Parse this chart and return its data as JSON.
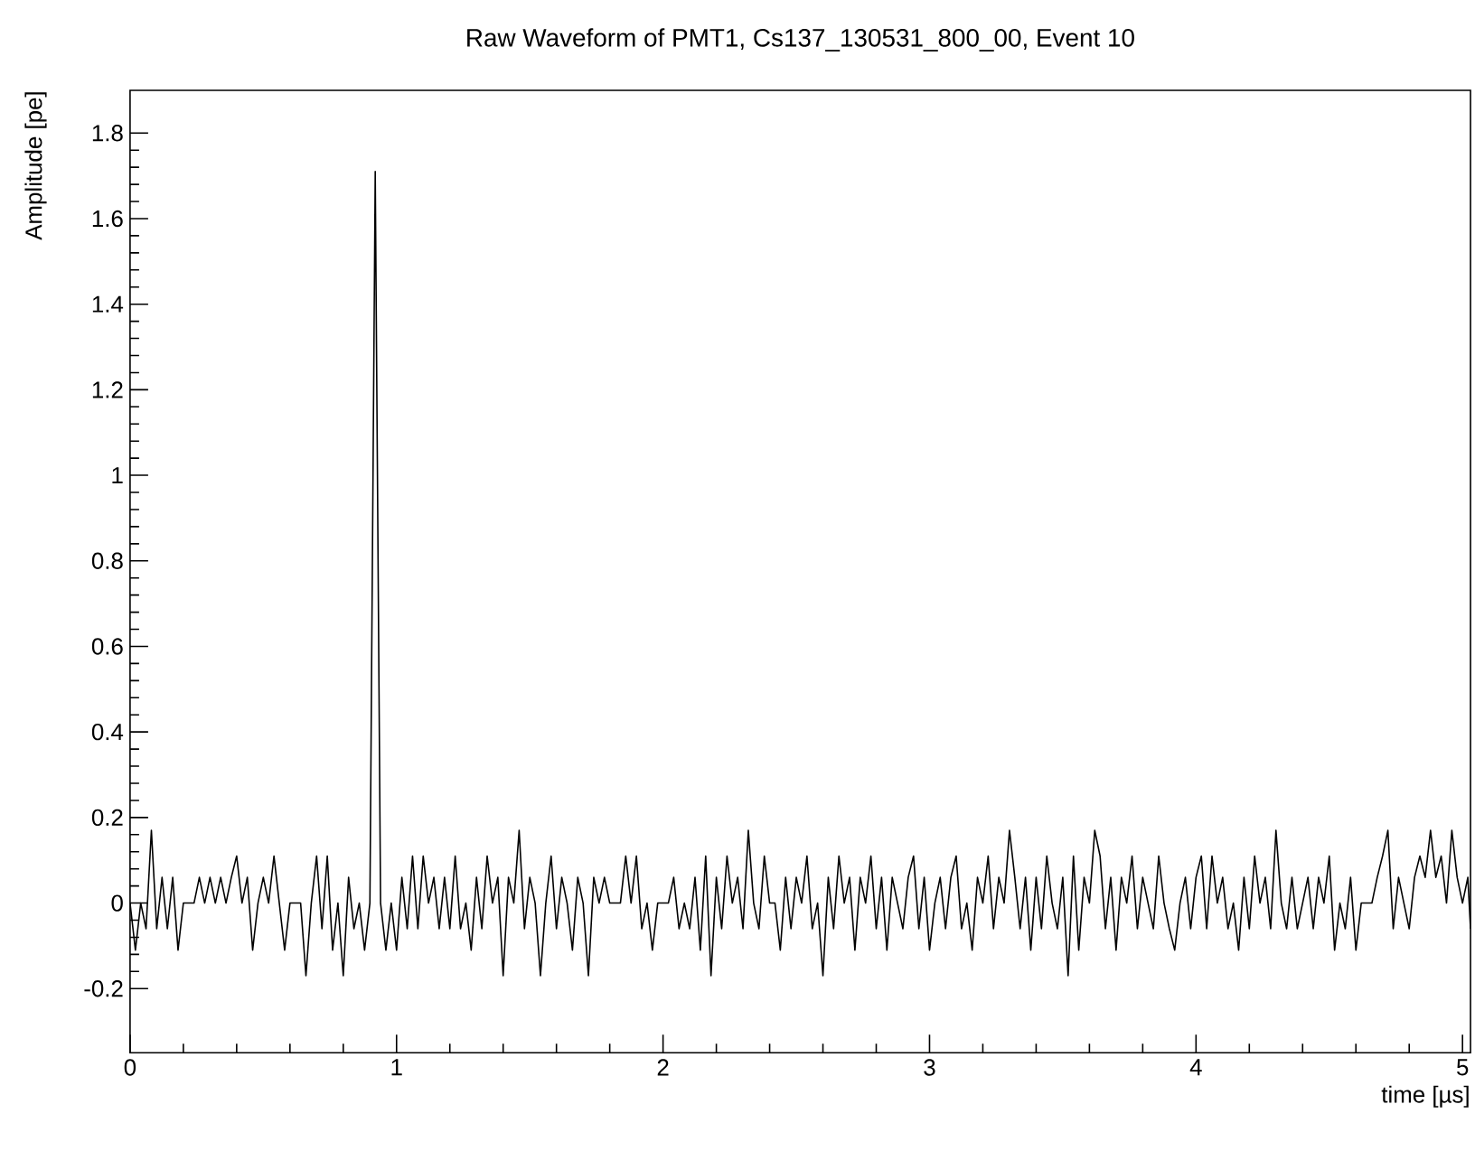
{
  "chart_data": {
    "type": "line",
    "title": "Raw Waveform of PMT1, Cs137_130531_800_00, Event 10",
    "xlabel": "time [µs]",
    "ylabel": "Amplitude [pe]",
    "xlim": [
      0,
      5.03
    ],
    "ylim": [
      -0.35,
      1.9
    ],
    "xticks": [
      0,
      1,
      2,
      3,
      4,
      5
    ],
    "yticks": [
      -0.2,
      0,
      0.2,
      0.4,
      0.6,
      0.8,
      1,
      1.2,
      1.4,
      1.6,
      1.8
    ],
    "marker": "none",
    "line_style": "solid",
    "series": [
      {
        "color": "#000000",
        "x": [
          0.0,
          0.02,
          0.04,
          0.06,
          0.08,
          0.1,
          0.12,
          0.14,
          0.16,
          0.18,
          0.2,
          0.24,
          0.26,
          0.28,
          0.3,
          0.32,
          0.34,
          0.36,
          0.38,
          0.4,
          0.42,
          0.44,
          0.46,
          0.48,
          0.5,
          0.52,
          0.54,
          0.56,
          0.58,
          0.6,
          0.64,
          0.66,
          0.68,
          0.7,
          0.72,
          0.74,
          0.76,
          0.78,
          0.8,
          0.82,
          0.84,
          0.86,
          0.88,
          0.9,
          0.92,
          0.94,
          0.96,
          0.98,
          1.0,
          1.02,
          1.04,
          1.06,
          1.08,
          1.1,
          1.12,
          1.14,
          1.16,
          1.18,
          1.2,
          1.22,
          1.24,
          1.26,
          1.28,
          1.3,
          1.32,
          1.34,
          1.36,
          1.38,
          1.4,
          1.42,
          1.44,
          1.46,
          1.48,
          1.5,
          1.52,
          1.54,
          1.56,
          1.58,
          1.6,
          1.62,
          1.64,
          1.66,
          1.68,
          1.7,
          1.72,
          1.74,
          1.76,
          1.78,
          1.8,
          1.84,
          1.86,
          1.88,
          1.9,
          1.92,
          1.94,
          1.96,
          1.98,
          2.02,
          2.04,
          2.06,
          2.08,
          2.1,
          2.12,
          2.14,
          2.16,
          2.18,
          2.2,
          2.22,
          2.24,
          2.26,
          2.28,
          2.3,
          2.32,
          2.34,
          2.36,
          2.38,
          2.4,
          2.42,
          2.44,
          2.46,
          2.48,
          2.5,
          2.52,
          2.54,
          2.56,
          2.58,
          2.6,
          2.62,
          2.64,
          2.66,
          2.68,
          2.7,
          2.72,
          2.74,
          2.76,
          2.78,
          2.8,
          2.82,
          2.84,
          2.86,
          2.88,
          2.9,
          2.92,
          2.94,
          2.96,
          2.98,
          3.0,
          3.02,
          3.04,
          3.06,
          3.08,
          3.1,
          3.12,
          3.14,
          3.16,
          3.18,
          3.2,
          3.22,
          3.24,
          3.26,
          3.28,
          3.3,
          3.32,
          3.34,
          3.36,
          3.38,
          3.4,
          3.42,
          3.44,
          3.46,
          3.48,
          3.5,
          3.52,
          3.54,
          3.56,
          3.58,
          3.6,
          3.62,
          3.64,
          3.66,
          3.68,
          3.7,
          3.72,
          3.74,
          3.76,
          3.78,
          3.8,
          3.82,
          3.84,
          3.86,
          3.88,
          3.9,
          3.92,
          3.94,
          3.96,
          3.98,
          4.0,
          4.02,
          4.04,
          4.06,
          4.08,
          4.1,
          4.12,
          4.14,
          4.16,
          4.18,
          4.2,
          4.22,
          4.24,
          4.26,
          4.28,
          4.3,
          4.32,
          4.34,
          4.36,
          4.38,
          4.4,
          4.42,
          4.44,
          4.46,
          4.48,
          4.5,
          4.52,
          4.54,
          4.56,
          4.58,
          4.6,
          4.62,
          4.66,
          4.68,
          4.7,
          4.72,
          4.74,
          4.76,
          4.78,
          4.8,
          4.82,
          4.84,
          4.86,
          4.88,
          4.9,
          4.92,
          4.94,
          4.96,
          4.98,
          5.0,
          5.02,
          5.03
        ],
        "values": [
          0,
          -0.11,
          0,
          -0.06,
          0.17,
          -0.06,
          0.06,
          -0.06,
          0.06,
          -0.11,
          0,
          0,
          0.06,
          0,
          0.06,
          0,
          0.06,
          0,
          0.06,
          0.11,
          0,
          0.06,
          -0.11,
          0,
          0.06,
          0,
          0.11,
          0,
          -0.11,
          0,
          0,
          -0.17,
          0,
          0.11,
          -0.06,
          0.11,
          -0.11,
          0,
          -0.17,
          0.06,
          -0.06,
          0,
          -0.11,
          0,
          1.71,
          0,
          -0.11,
          0,
          -0.11,
          0.06,
          -0.06,
          0.11,
          -0.06,
          0.11,
          0,
          0.06,
          -0.06,
          0.06,
          -0.06,
          0.11,
          -0.06,
          0,
          -0.11,
          0.06,
          -0.06,
          0.11,
          0,
          0.06,
          -0.17,
          0.06,
          0,
          0.17,
          -0.06,
          0.06,
          0,
          -0.17,
          0,
          0.11,
          -0.06,
          0.06,
          0,
          -0.11,
          0.06,
          0,
          -0.17,
          0.06,
          0,
          0.06,
          0,
          0,
          0.11,
          0,
          0.11,
          -0.06,
          0,
          -0.11,
          0,
          0,
          0.06,
          -0.06,
          0,
          -0.06,
          0.06,
          -0.11,
          0.11,
          -0.17,
          0.06,
          -0.06,
          0.11,
          0,
          0.06,
          -0.06,
          0.17,
          0,
          -0.06,
          0.11,
          0,
          0,
          -0.11,
          0.06,
          -0.06,
          0.06,
          0,
          0.11,
          -0.06,
          0,
          -0.17,
          0.06,
          -0.06,
          0.11,
          0,
          0.06,
          -0.11,
          0.06,
          0,
          0.11,
          -0.06,
          0.06,
          -0.11,
          0.06,
          0,
          -0.06,
          0.06,
          0.11,
          -0.06,
          0.06,
          -0.11,
          0,
          0.06,
          -0.06,
          0.06,
          0.11,
          -0.06,
          0,
          -0.11,
          0.06,
          0,
          0.11,
          -0.06,
          0.06,
          0,
          0.17,
          0.06,
          -0.06,
          0.06,
          -0.11,
          0.06,
          -0.06,
          0.11,
          0,
          -0.06,
          0.06,
          -0.17,
          0.11,
          -0.11,
          0.06,
          0,
          0.17,
          0.11,
          -0.06,
          0.06,
          -0.11,
          0.06,
          0,
          0.11,
          -0.06,
          0.06,
          0,
          -0.06,
          0.11,
          0,
          -0.06,
          -0.11,
          0,
          0.06,
          -0.06,
          0.06,
          0.11,
          -0.06,
          0.11,
          0,
          0.06,
          -0.06,
          0,
          -0.11,
          0.06,
          -0.06,
          0.11,
          0,
          0.06,
          -0.06,
          0.17,
          0,
          -0.06,
          0.06,
          -0.06,
          0,
          0.06,
          -0.06,
          0.06,
          0,
          0.11,
          -0.11,
          0,
          -0.06,
          0.06,
          -0.11,
          0,
          0,
          0.06,
          0.11,
          0.17,
          -0.06,
          0.06,
          0,
          -0.06,
          0.06,
          0.11,
          0.06,
          0.17,
          0.06,
          0.11,
          0,
          0.17,
          0.06,
          0,
          0.06,
          -0.06
        ]
      }
    ]
  }
}
